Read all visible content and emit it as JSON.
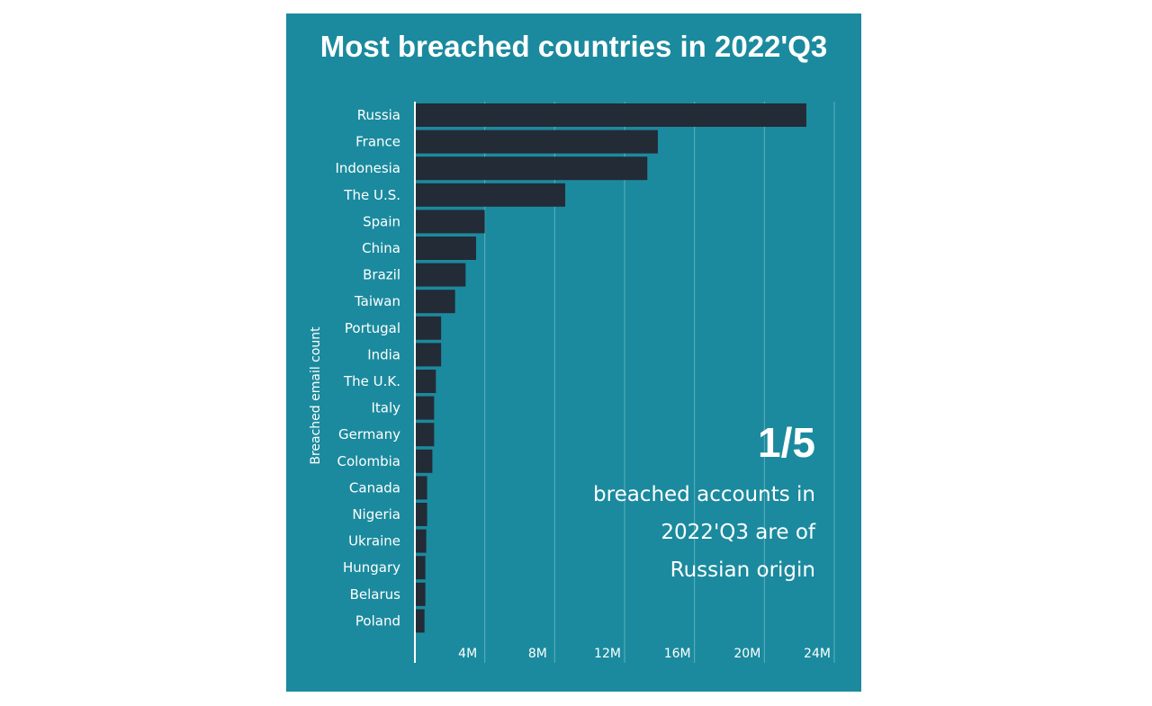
{
  "chart_data": {
    "type": "bar",
    "orientation": "horizontal",
    "title": "Most breached countries in 2022'Q3",
    "xlabel": "",
    "ylabel": "Breached email count",
    "categories": [
      "Russia",
      "France",
      "Indonesia",
      "The U.S.",
      "Spain",
      "China",
      "Brazil",
      "Taiwan",
      "Portugal",
      "India",
      "The U.K.",
      "Italy",
      "Germany",
      "Colombia",
      "Canada",
      "Nigeria",
      "Ukraine",
      "Hungary",
      "Belarus",
      "Poland"
    ],
    "values": [
      22.4,
      13.9,
      13.3,
      8.6,
      4.0,
      3.5,
      2.9,
      2.3,
      1.5,
      1.5,
      1.2,
      1.1,
      1.1,
      1.0,
      0.7,
      0.7,
      0.65,
      0.6,
      0.6,
      0.55
    ],
    "value_unit": "M",
    "xlim": [
      0,
      24
    ],
    "x_ticks": [
      4,
      8,
      12,
      16,
      20,
      24
    ],
    "x_tick_labels": [
      "4M",
      "8M",
      "12M",
      "16M",
      "20M",
      "24M"
    ],
    "grid": true,
    "colors": {
      "background": "#1b8a9e",
      "bar": "#232b36",
      "grid": "#7cc1cd",
      "text": "#ffffff",
      "axis": "#ffffff"
    }
  },
  "annotation": {
    "big": "1/5",
    "text": "breached accounts in\n2022'Q3 are of\nRussian origin"
  }
}
